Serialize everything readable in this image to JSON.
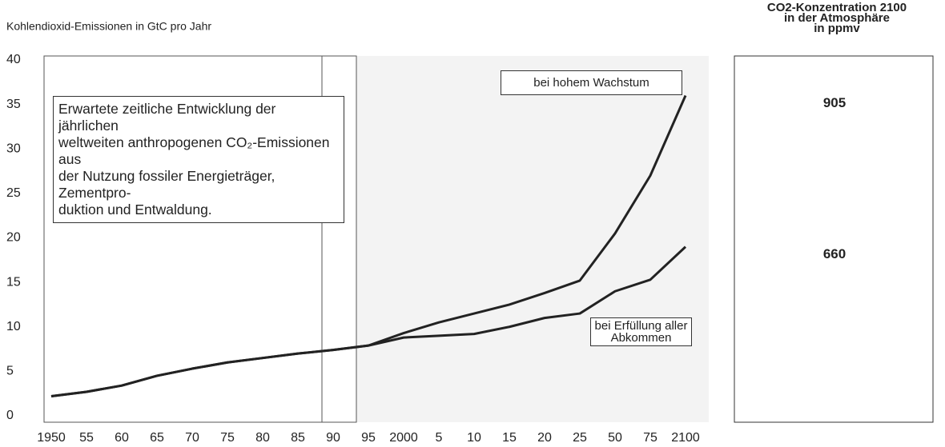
{
  "chart_data": {
    "type": "line",
    "y_label": "Kohlendioxid-Emissionen in GtC pro Jahr",
    "categories": [
      "1950",
      "55",
      "60",
      "65",
      "70",
      "75",
      "80",
      "85",
      "90",
      "95",
      "2000",
      "5",
      "10",
      "15",
      "20",
      "25",
      "50",
      "75",
      "2100"
    ],
    "series": [
      {
        "name": "bei hohem Wachstum",
        "color": "#222222",
        "values": [
          2.2,
          2.7,
          3.4,
          4.5,
          5.3,
          6.0,
          6.5,
          7.0,
          7.4,
          7.9,
          9.3,
          10.5,
          11.5,
          12.5,
          13.8,
          15.2,
          20.5,
          27,
          36
        ]
      },
      {
        "name": "bei Erfüllung aller Abkommen",
        "color": "#222222",
        "values": [
          2.2,
          2.7,
          3.4,
          4.5,
          5.3,
          6.0,
          6.5,
          7.0,
          7.4,
          7.9,
          8.8,
          9.0,
          9.2,
          10.0,
          11.0,
          11.5,
          14,
          15.3,
          19
        ]
      }
    ],
    "annotation": [
      "Erwartete zeitliche Entwicklung der jährlichen",
      "weltweiten anthropogenen CO₂-Emissionen aus",
      "der Nutzung fossiler Energieträger, Zementpro-",
      "duktion und Entwaldung."
    ],
    "ylim": [
      0,
      40
    ],
    "yticks": [
      0,
      5,
      10,
      15,
      20,
      25,
      30,
      35,
      40
    ],
    "grid": false
  },
  "side_panel": {
    "title": [
      "CO2-Konzentration 2100",
      "in der Atmosphäre",
      "in ppmv"
    ],
    "values": [
      905,
      660
    ]
  }
}
